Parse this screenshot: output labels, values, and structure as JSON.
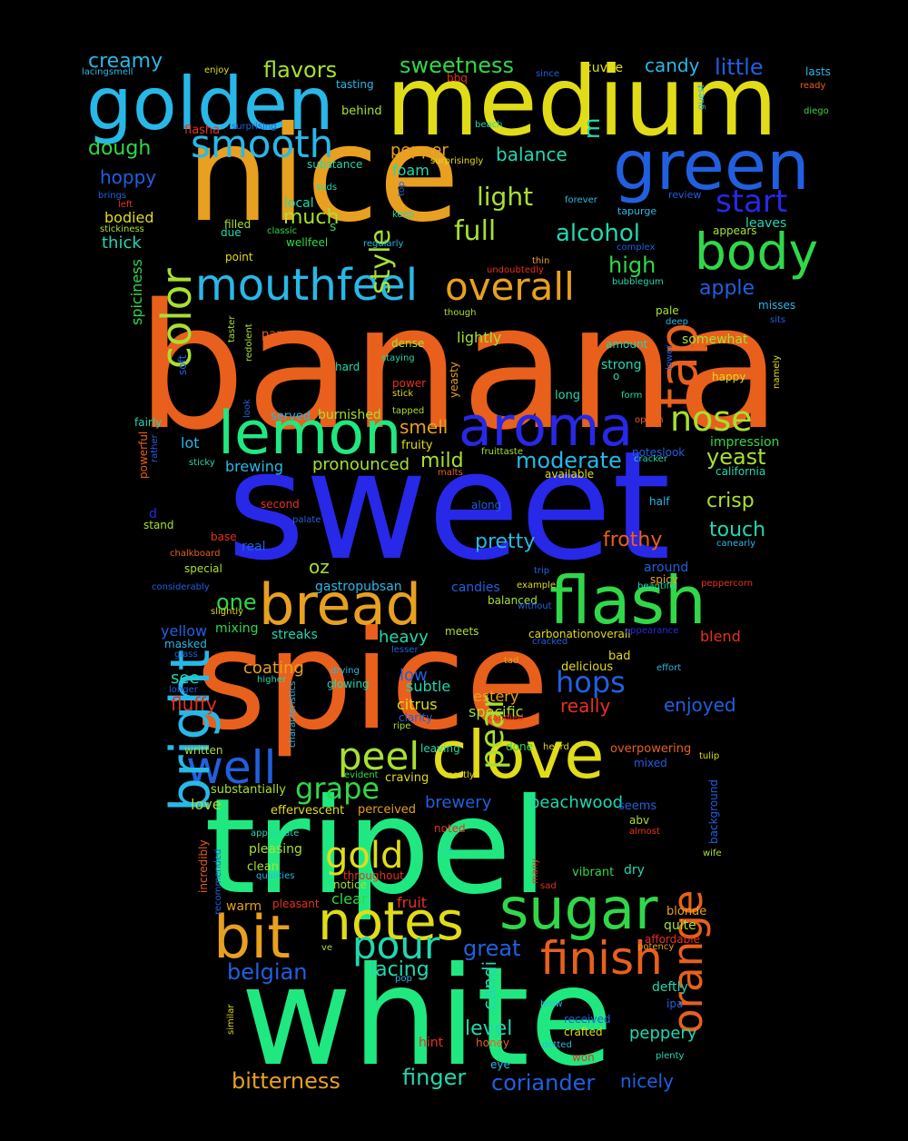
{
  "palette": {
    "background": "#000000",
    "orange": "#e8601c",
    "amber": "#e8a020",
    "yellow": "#e0dc18",
    "lime": "#a8e030",
    "green": "#30d848",
    "mint": "#20e880",
    "teal": "#20d8b0",
    "cyan": "#28b8e8",
    "blue": "#2060e0",
    "indigo": "#2828e8",
    "red": "#e83020"
  },
  "words": [
    "banana",
    "sweet",
    "spice",
    "tripel",
    "white",
    "nice",
    "medium",
    "golden",
    "green",
    "clove",
    "bread",
    "flash",
    "aroma",
    "lemon",
    "notes",
    "sugar",
    "bit",
    "mouthfeel",
    "finish",
    "nose",
    "body",
    "tap",
    "overall",
    "well",
    "peel",
    "pour",
    "smooth",
    "color",
    "bright",
    "orange",
    "hops",
    "pear",
    "gold",
    "grape",
    "full",
    "alcohol",
    "start",
    "style",
    "light",
    "flavors",
    "sweetness",
    "creamy",
    "little",
    "candy",
    "m",
    "much",
    "high",
    "apple",
    "dough",
    "hoppy",
    "balance",
    "thick",
    "bodied",
    "yeast",
    "crisp",
    "touch",
    "moderate",
    "mild",
    "smell",
    "pronounced",
    "one",
    "oz",
    "pretty",
    "frothy",
    "great",
    "belgian",
    "lacing",
    "candi",
    "level",
    "bitterness",
    "finger",
    "coriander",
    "nicely",
    "peppery",
    "beachwood",
    "brewery",
    "love",
    "really",
    "enjoyed",
    "fluffy",
    "see",
    "yellow",
    "coating",
    "low",
    "subtle",
    "heavy",
    "streaks",
    "citrus",
    "estery",
    "specific",
    "blend",
    "around",
    "spicy",
    "lot",
    "brewing",
    "burnished",
    "served",
    "lightly",
    "strong",
    "impression",
    "somewhat",
    "happy",
    "pepper",
    "foam",
    "local",
    "wellfeel",
    "s",
    "pale",
    "leaves",
    "appears",
    "misses",
    "thin",
    "complex",
    "tapurge",
    "forever",
    "review",
    "cuvee",
    "since",
    "lasts",
    "ready",
    "diego",
    "bbq",
    "enjoy",
    "lacingsmell",
    "tasting",
    "behind",
    "flasha",
    "surprising",
    "beach",
    "guest",
    "substance",
    "surprisingly",
    "suds",
    "keep",
    "top",
    "brings",
    "left",
    "stickiness",
    "filled",
    "due",
    "classic",
    "point",
    "regularly",
    "undoubtedly",
    "bubblegum",
    "though",
    "deep",
    "sits",
    "spiciness",
    "taster",
    "redolent",
    "paper",
    "dense",
    "staying",
    "hard",
    "power",
    "stick",
    "tapped",
    "yeasty",
    "o",
    "long",
    "form",
    "amount",
    "lower",
    "namely",
    "soft",
    "fairly",
    "powerful",
    "rather",
    "look",
    "fruity",
    "fruittaste",
    "malts",
    "noteslook",
    "cracker",
    "available",
    "california",
    "option",
    "sticky",
    "d",
    "second",
    "along",
    "stand",
    "palate",
    "half",
    "canearly",
    "base",
    "real",
    "trip",
    "chalkboard",
    "special",
    "gastropubsan",
    "candies",
    "considerably",
    "example",
    "beautiful",
    "peppercorn",
    "slightly",
    "balanced",
    "without",
    "mixing",
    "masked",
    "meets",
    "carbonationoverall",
    "appearance",
    "glass",
    "lesser",
    "cracked",
    "tad",
    "bad",
    "delicious",
    "effort",
    "drying",
    "glowing",
    "higher",
    "longer",
    "characteristics",
    "clarity",
    "candied",
    "ripe",
    "written",
    "leaving",
    "done",
    "heard",
    "overpowering",
    "tulip",
    "mixed",
    "evident",
    "craving",
    "mostly",
    "substantially",
    "effervescent",
    "perceived",
    "seems",
    "background",
    "abv",
    "almost",
    "appreciate",
    "noted",
    "ca",
    "pleasing",
    "incredibly",
    "recommended",
    "clean",
    "qualities",
    "throughout",
    "notice",
    "many",
    "vibrant",
    "dry",
    "wife",
    "warm",
    "clear",
    "sad",
    "fruit",
    "pleasant",
    "quite",
    "blonde",
    "affordable",
    "ve",
    "potency",
    "pop",
    "deftly",
    "ipa",
    "similar",
    "brew",
    "received",
    "crafted",
    "hint",
    "honey",
    "dotted",
    "won",
    "plenty",
    "eye"
  ]
}
